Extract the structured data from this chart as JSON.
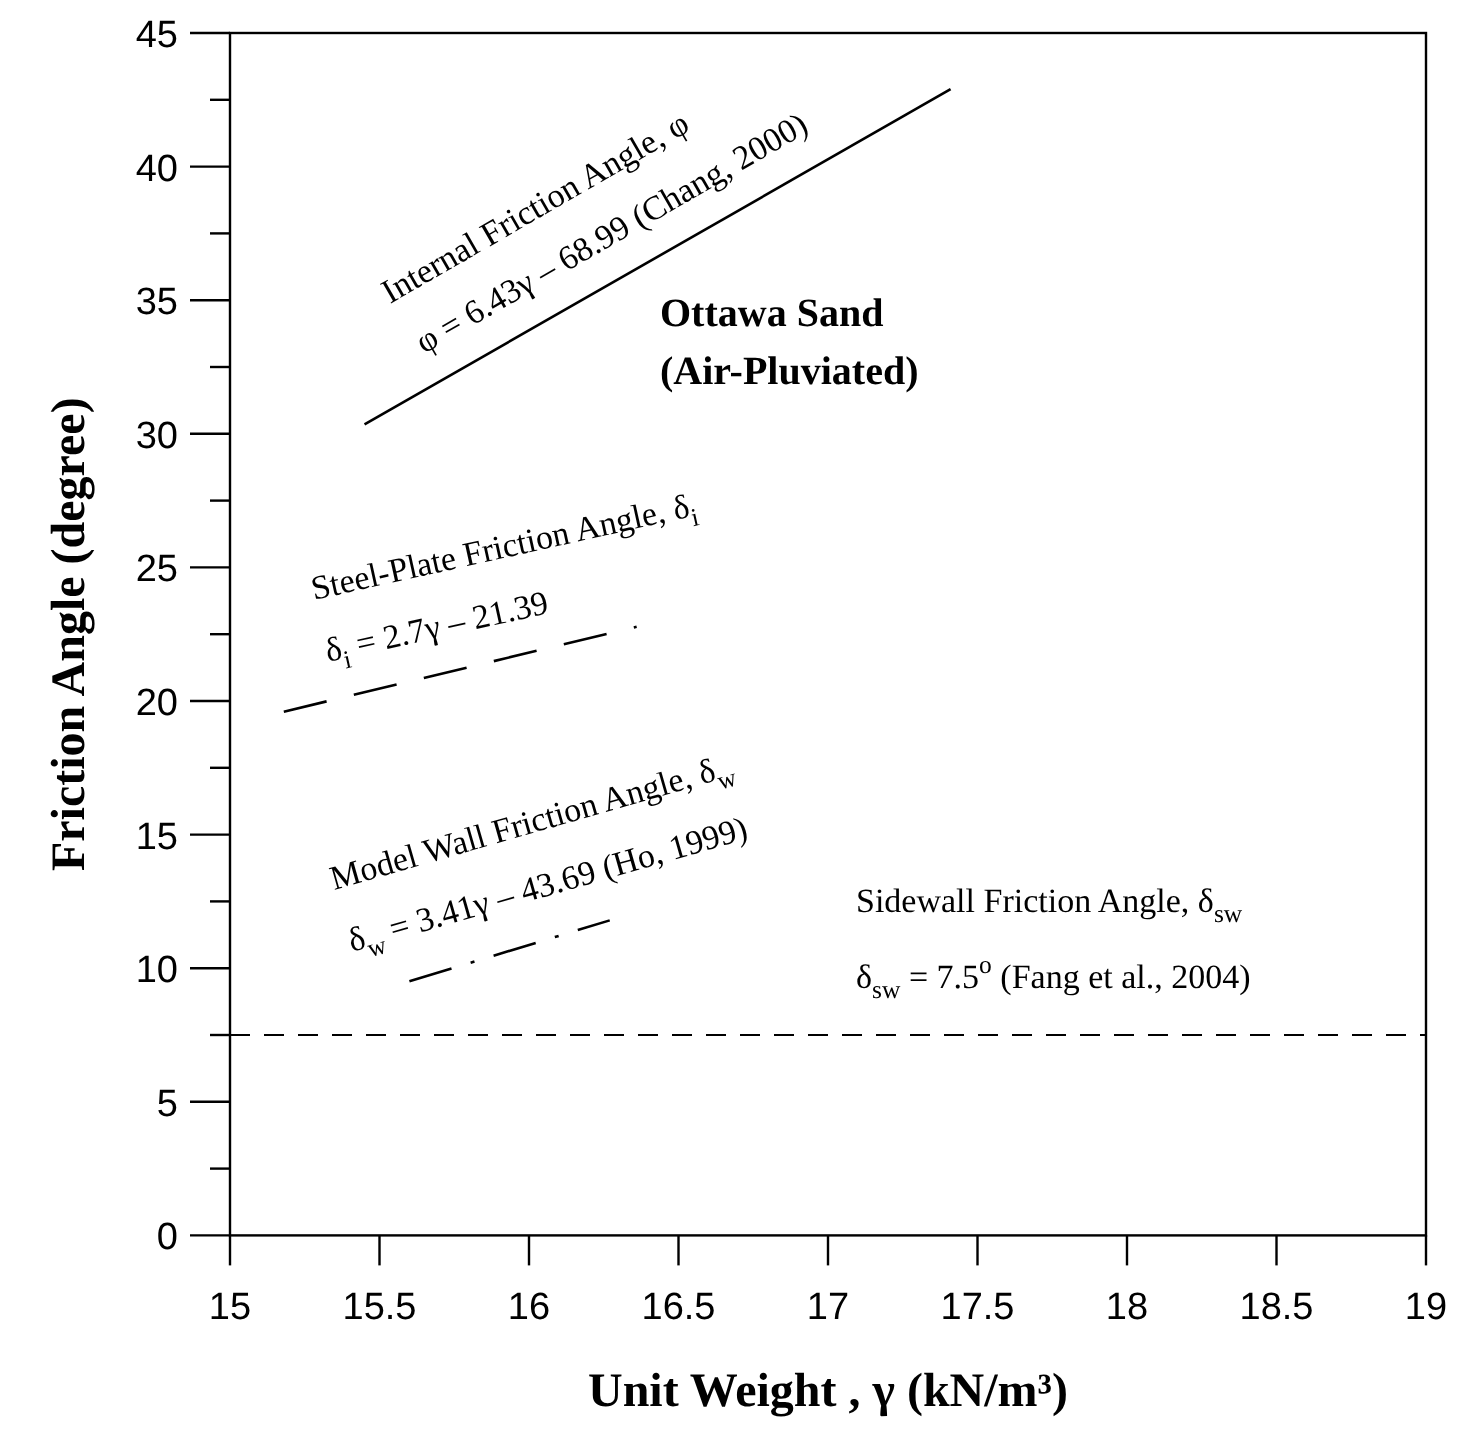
{
  "chart_data": {
    "type": "line",
    "xlabel": "Unit Weight , γ (kN/m³)",
    "ylabel": "Friction Angle (degree)",
    "xlim": [
      15,
      19
    ],
    "xticks": [
      15,
      15.5,
      16,
      16.5,
      17,
      17.5,
      18,
      18.5,
      19
    ],
    "ylim": [
      0,
      45
    ],
    "yticks": [
      0,
      {
        "value": 2.5,
        "label": null
      },
      5,
      {
        "value": 7.5,
        "label": null
      },
      10,
      {
        "value": 12.5,
        "label": null
      },
      15,
      {
        "value": 17.5,
        "label": null
      },
      20,
      {
        "value": 22.5,
        "label": null
      },
      25,
      {
        "value": 27.5,
        "label": null
      },
      30,
      {
        "value": 32.5,
        "label": null
      },
      35,
      {
        "value": 37.5,
        "label": null
      },
      40,
      {
        "value": 42.5,
        "label": null
      },
      45
    ],
    "grid": false,
    "marker": "none",
    "series": [
      {
        "color": "#000000",
        "line_style": "solid",
        "x": [
          15.45,
          17.41
        ],
        "values": [
          30.35,
          42.9
        ]
      },
      {
        "color": "#000000",
        "line_style": "dashed",
        "x": [
          15.18,
          16.36
        ],
        "values": [
          19.6,
          22.78
        ]
      },
      {
        "color": "#000000",
        "line_style": "dotted",
        "x": [
          15.6,
          16.27
        ],
        "values": [
          9.51,
          11.79
        ]
      }
    ],
    "ref_lines": [
      {
        "axis": "y",
        "value": 7.5,
        "label": null,
        "color": "#000000",
        "line_style": "dashed"
      }
    ],
    "annotations": [
      "Internal Friction Angle, φ",
      "φ = 6.43γ – 68.99 (Chang, 2000)",
      "Ottawa Sand",
      "(Air-Pluviated)",
      "Steel-Plate Friction Angle, δ$_{i}$",
      "δ$_{i}$ = 2.7γ – 21.39",
      "Model Wall Friction Angle, δ$_{w}$",
      "δ$_{w}$ = 3.41γ – 43.69 (Ho, 1999)",
      "Sidewall Friction Angle, δ$_{sw}$",
      "δ$_{sw}$ = 7.5$^{o}$ (Fang et al., 2004)"
    ]
  }
}
